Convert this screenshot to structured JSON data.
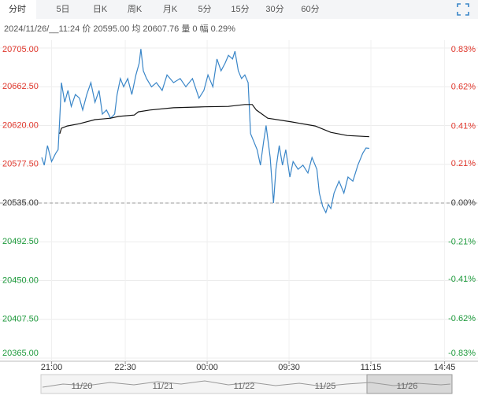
{
  "tabs": [
    "分时",
    "5日",
    "日K",
    "周K",
    "月K",
    "5分",
    "15分",
    "30分",
    "60分"
  ],
  "info": {
    "time": "2024/11/26/__11:24",
    "price_label": "价",
    "price": "20595.00",
    "avg_label": "均",
    "avg": "20607.76",
    "vol_label": "量",
    "vol": "0",
    "amp_label": "幅",
    "amp": "0.29%"
  },
  "chart_data": {
    "type": "line",
    "xlim": [
      -13,
      490
    ],
    "ylim": [
      20365,
      20705
    ],
    "y2lim": [
      -0.83,
      0.83
    ],
    "xticks": [
      {
        "value": 0,
        "label": "21:00"
      },
      {
        "value": 90,
        "label": "22:30"
      },
      {
        "value": 190,
        "label": "00:00"
      },
      {
        "value": 290,
        "label": "09:30"
      },
      {
        "value": 390,
        "label": "11:15"
      },
      {
        "value": 480,
        "label": "14:45"
      }
    ],
    "yticks": [
      {
        "value": 20705,
        "label": "20705.00"
      },
      {
        "value": 20662.5,
        "label": "20662.50"
      },
      {
        "value": 20620,
        "label": "20620.00"
      },
      {
        "value": 20577.5,
        "label": "20577.50"
      },
      {
        "value": 20535,
        "label": "20535.00"
      },
      {
        "value": 20492.5,
        "label": "20492.50"
      },
      {
        "value": 20450,
        "label": "20450.00"
      },
      {
        "value": 20407.5,
        "label": "20407.50"
      },
      {
        "value": 20365,
        "label": "20365.00"
      }
    ],
    "y2ticks": [
      {
        "value": 0.83,
        "label": "0.83%"
      },
      {
        "value": 0.62,
        "label": "0.62%"
      },
      {
        "value": 0.41,
        "label": "0.41%"
      },
      {
        "value": 0.21,
        "label": "0.21%"
      },
      {
        "value": 0,
        "label": "0.00%"
      },
      {
        "value": -0.21,
        "label": "-0.21%"
      },
      {
        "value": -0.41,
        "label": "-0.41%"
      },
      {
        "value": -0.62,
        "label": "-0.62%"
      },
      {
        "value": -0.83,
        "label": "-0.83%"
      }
    ],
    "base_line": 20535,
    "up_color": "#e0372c",
    "down_color": "#1e9a3c",
    "flat_color": "#333333",
    "grid": true,
    "series": [
      {
        "color": "#3a86c8",
        "x": [
          -12,
          -9,
          -5,
          0,
          5,
          8,
          10,
          12,
          16,
          20,
          24,
          29,
          34,
          38,
          43,
          48,
          53,
          58,
          62,
          67,
          72,
          77,
          80,
          84,
          88,
          93,
          98,
          103,
          107,
          109,
          112,
          116,
          122,
          128,
          135,
          141,
          149,
          157,
          164,
          172,
          180,
          186,
          191,
          197,
          202,
          207,
          212,
          216,
          221,
          224,
          228,
          232,
          236,
          240,
          243,
          247,
          251,
          255,
          259,
          262,
          267,
          271,
          274,
          278,
          282,
          286,
          291,
          295,
          301,
          307,
          313,
          318,
          324,
          327,
          331,
          335,
          338,
          341,
          345,
          351,
          357,
          362,
          368,
          374,
          380,
          384,
          388
        ],
        "values": [
          20585,
          20576.5,
          20598,
          20580.5,
          20589.5,
          20593.5,
          20628,
          20667,
          20645.5,
          20658.5,
          20641,
          20654,
          20650,
          20637,
          20654,
          20667,
          20645.5,
          20658.5,
          20632.5,
          20637,
          20628,
          20632.5,
          20654,
          20671.5,
          20662.5,
          20671.5,
          20654,
          20675.5,
          20688.5,
          20704,
          20680,
          20671.5,
          20662.5,
          20667,
          20658.5,
          20675.5,
          20667,
          20671.5,
          20662.5,
          20671.5,
          20650,
          20658.5,
          20675.5,
          20662.5,
          20693,
          20680,
          20688.5,
          20697,
          20693,
          20701.5,
          20680,
          20671.5,
          20675.5,
          20667,
          20611,
          20602.5,
          20593.5,
          20576.5,
          20602.5,
          20620,
          20585,
          20535,
          20572,
          20598,
          20576.5,
          20593.5,
          20563.5,
          20580.5,
          20572,
          20576.5,
          20568,
          20585,
          20572,
          20546,
          20531.5,
          20524.5,
          20533.5,
          20529,
          20546,
          20559,
          20546,
          20563.5,
          20559,
          20576.5,
          20589.5,
          20595.4,
          20595
        ]
      },
      {
        "color": "#111111",
        "x": [
          10,
          12,
          19,
          34,
          53,
          72,
          82,
          101,
          106,
          120,
          149,
          187,
          216,
          236,
          245,
          250,
          264,
          293,
          322,
          341,
          361,
          388
        ],
        "values": [
          20611,
          20617,
          20619.5,
          20622,
          20626.5,
          20628,
          20630,
          20631.5,
          20635,
          20637,
          20639.5,
          20640.5,
          20641,
          20643,
          20643,
          20637,
          20628,
          20624,
          20619.5,
          20612.5,
          20609,
          20607.76
        ]
      }
    ]
  },
  "navigator": {
    "labels": [
      "11/20",
      "11/21",
      "11/22",
      "11/25",
      "11/26"
    ]
  }
}
